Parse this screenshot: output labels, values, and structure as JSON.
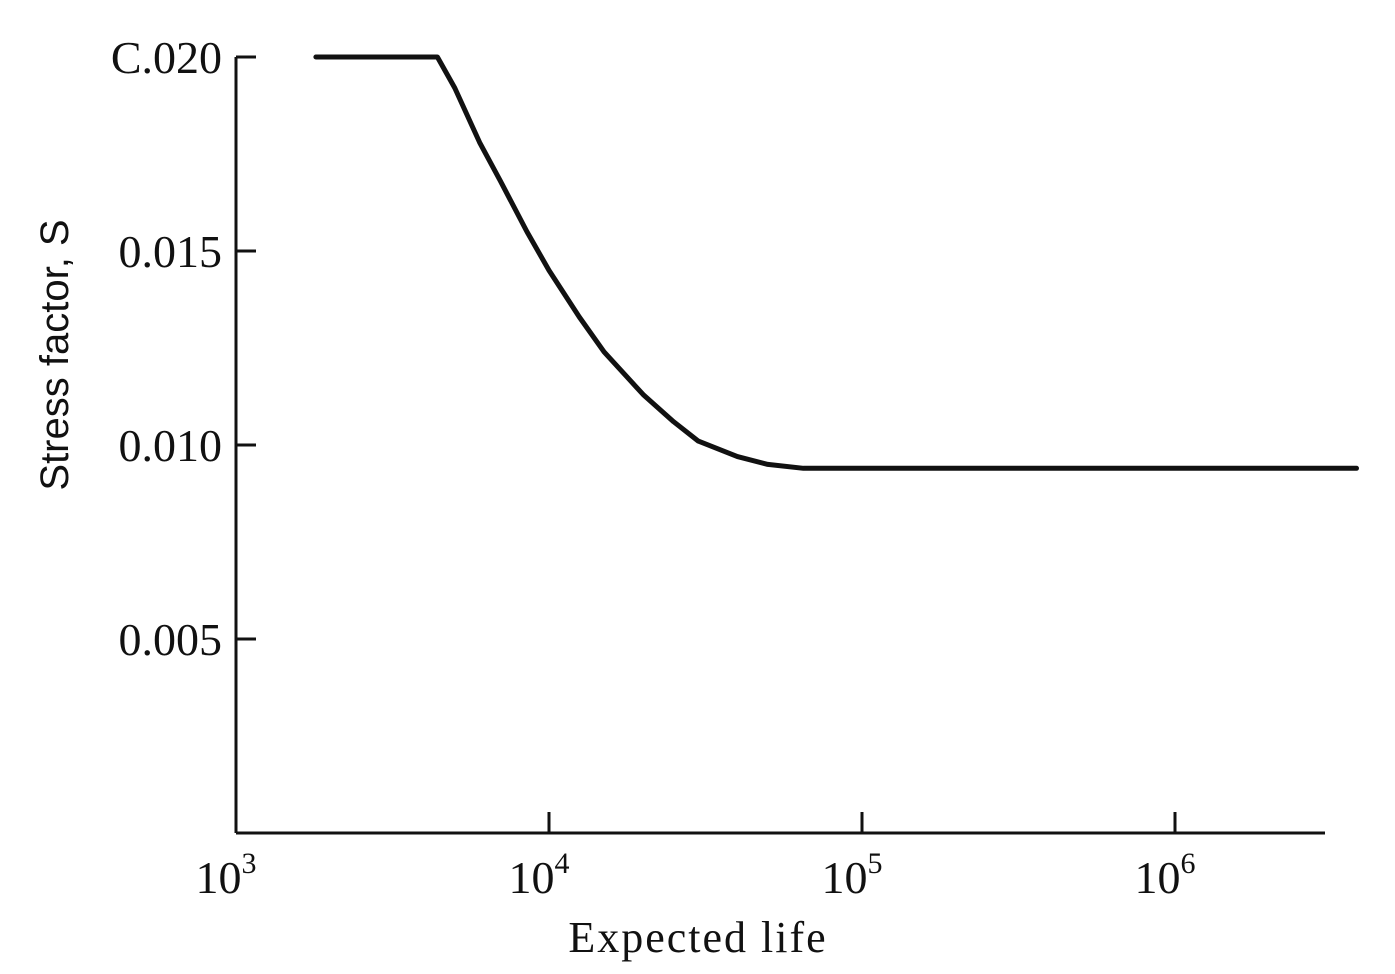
{
  "chart_data": {
    "type": "line",
    "xlabel": "Expected life",
    "ylabel": "Stress factor, S",
    "xscale": "log",
    "xlim": [
      1000,
      4000000
    ],
    "ylim": [
      0,
      0.02
    ],
    "x_ticks": [
      {
        "base": "10",
        "exp": "3",
        "value": 1000
      },
      {
        "base": "10",
        "exp": "4",
        "value": 10000
      },
      {
        "base": "10",
        "exp": "5",
        "value": 100000
      },
      {
        "base": "10",
        "exp": "6",
        "value": 1000000
      }
    ],
    "y_ticks": [
      {
        "label": "C.020",
        "value": 0.02
      },
      {
        "label": "0.015",
        "value": 0.015
      },
      {
        "label": "0.010",
        "value": 0.01
      },
      {
        "label": "0.005",
        "value": 0.005
      }
    ],
    "grid": false,
    "series": [
      {
        "color": "#111111",
        "x": [
          1800,
          4400,
          5000,
          6000,
          7000,
          8500,
          10000,
          12500,
          15000,
          20000,
          25000,
          30000,
          40000,
          50000,
          65000,
          100000,
          300000,
          1000000,
          3800000
        ],
        "y": [
          0.02,
          0.02,
          0.0192,
          0.0178,
          0.0168,
          0.0155,
          0.0145,
          0.0133,
          0.0124,
          0.0113,
          0.0106,
          0.0101,
          0.0097,
          0.0095,
          0.0094,
          0.0094,
          0.0094,
          0.0094,
          0.0094
        ]
      }
    ]
  }
}
